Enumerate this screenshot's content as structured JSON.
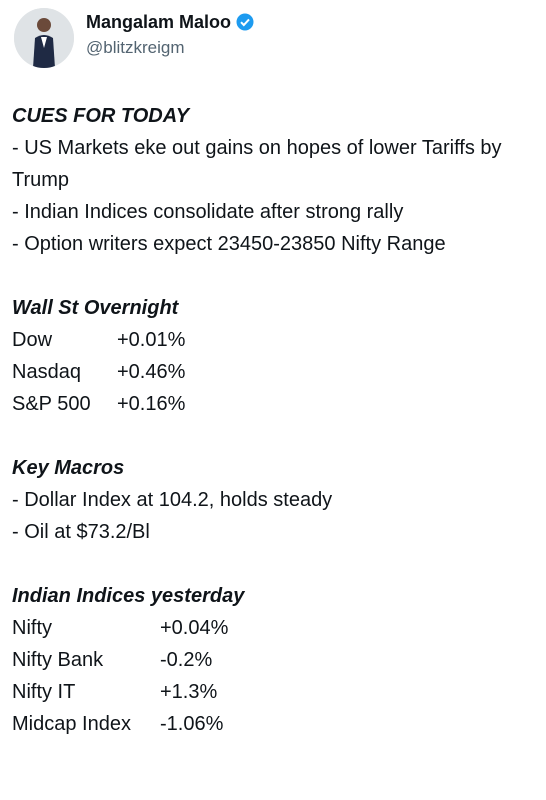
{
  "author": {
    "name": "Mangalam Maloo",
    "handle": "@blitzkreigm"
  },
  "sections": [
    {
      "heading": "CUES FOR TODAY",
      "lines": [
        "- US Markets eke out gains on hopes of lower Tariffs by Trump",
        "- Indian Indices consolidate after strong rally",
        "- Option writers expect 23450-23850 Nifty Range"
      ]
    },
    {
      "heading": "Wall St Overnight",
      "rows": [
        [
          "Dow",
          "+0.01%"
        ],
        [
          "Nasdaq",
          "+0.46%"
        ],
        [
          "S&P 500",
          "+0.16%"
        ]
      ]
    },
    {
      "heading": "Key Macros",
      "lines": [
        "- Dollar Index at 104.2, holds steady",
        "- Oil at $73.2/Bl"
      ]
    },
    {
      "heading": "Indian Indices yesterday",
      "rows": [
        [
          "Nifty",
          "+0.04%"
        ],
        [
          "Nifty Bank",
          "-0.2%"
        ],
        [
          "Nifty IT",
          "+1.3%"
        ],
        [
          "Midcap Index",
          "-1.06%"
        ]
      ]
    }
  ]
}
